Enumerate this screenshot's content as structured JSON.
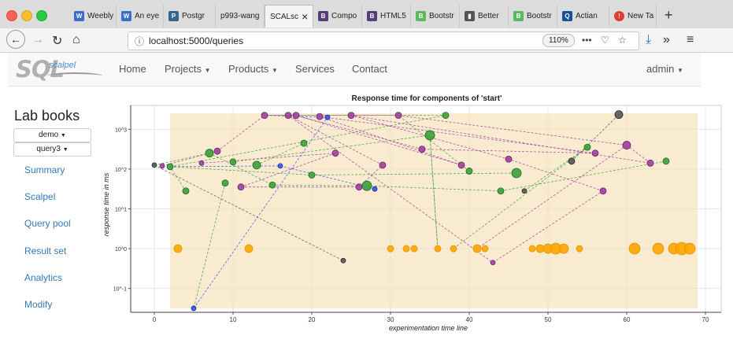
{
  "browser": {
    "tabs": [
      {
        "label": "Weebly",
        "icon": "weebly-icon",
        "color": "#3a6bd1"
      },
      {
        "label": "An eye",
        "icon": "weebly-icon",
        "color": "#3a6bd1"
      },
      {
        "label": "Postgr",
        "icon": "postgres-icon",
        "color": "#336791"
      },
      {
        "label": "p993-wang",
        "icon": "document-icon",
        "color": "#888888"
      },
      {
        "label": "SCALsc",
        "icon": "",
        "color": ""
      },
      {
        "label": "Compo",
        "icon": "bootstrap-icon",
        "color": "#563d7c"
      },
      {
        "label": "HTML5",
        "icon": "bootstrap-icon",
        "color": "#563d7c"
      },
      {
        "label": "Bootstr",
        "icon": "bootstrap-expo-icon",
        "color": "#5cb85c"
      },
      {
        "label": "Better",
        "icon": "book-icon",
        "color": "#555555"
      },
      {
        "label": "Bootstr",
        "icon": "bootstrap-expo-icon",
        "color": "#5cb85c"
      },
      {
        "label": "Actian",
        "icon": "actian-icon",
        "color": "#1b4f9c"
      },
      {
        "label": "New Ta",
        "icon": "new-tab-icon",
        "color": "#e23b2e"
      }
    ],
    "url": "localhost:5000/queries",
    "zoom": "110%"
  },
  "app": {
    "logo_main": "SQL",
    "logo_sub": "scalpel",
    "nav": [
      "Home",
      "Projects",
      "Products",
      "Services",
      "Contact"
    ],
    "user": "admin"
  },
  "sidebar": {
    "title": "Lab books",
    "dropdown1": "demo",
    "dropdown2": "query3",
    "links": [
      "Summary",
      "Scalpel",
      "Query pool",
      "Result set",
      "Analytics",
      "Modify"
    ]
  },
  "chart_data": {
    "type": "scatter",
    "title": "Response time for components of 'start'",
    "xlabel": "experimentation time line",
    "ylabel": "response time in ms",
    "xlim": [
      -3,
      72
    ],
    "ylim_log10": [
      -1.6,
      3.6
    ],
    "xticks": [
      0,
      10,
      20,
      30,
      40,
      50,
      60,
      70
    ],
    "yticks": [
      {
        "v": -1,
        "label": "10^-1"
      },
      {
        "v": 0,
        "label": "10^0"
      },
      {
        "v": 1,
        "label": "10^1"
      },
      {
        "v": 2,
        "label": "10^2"
      },
      {
        "v": 3,
        "label": "10^3"
      }
    ],
    "band": {
      "x": [
        2,
        69
      ],
      "y_log10": [
        -1.5,
        3.4
      ],
      "color": "#f5deb0"
    },
    "series": [
      {
        "color": "#ffa500",
        "edge": "#e69500",
        "points": [
          [
            3,
            0,
            5
          ],
          [
            12,
            0,
            5
          ],
          [
            30,
            0,
            4
          ],
          [
            32,
            0,
            4
          ],
          [
            33,
            0,
            4
          ],
          [
            36,
            0,
            4
          ],
          [
            38,
            0,
            4
          ],
          [
            41,
            0,
            5
          ],
          [
            42,
            0,
            4
          ],
          [
            48,
            0,
            4
          ],
          [
            49,
            0,
            5
          ],
          [
            50,
            0,
            6
          ],
          [
            51,
            0,
            7
          ],
          [
            52,
            0,
            6
          ],
          [
            54,
            0,
            4
          ],
          [
            61,
            0,
            7
          ],
          [
            64,
            0,
            7
          ],
          [
            66,
            0,
            7
          ],
          [
            67,
            0,
            8
          ],
          [
            68,
            0,
            7
          ]
        ]
      },
      {
        "color": "#3ba13b",
        "edge": "#1d6b1d",
        "points": [
          [
            2,
            2.06,
            4
          ],
          [
            4,
            1.45,
            4
          ],
          [
            7,
            2.4,
            5
          ],
          [
            9,
            1.65,
            4
          ],
          [
            10,
            2.18,
            4
          ],
          [
            13,
            2.1,
            5
          ],
          [
            15,
            1.6,
            4
          ],
          [
            19,
            2.65,
            4
          ],
          [
            20,
            1.85,
            4
          ],
          [
            27,
            1.58,
            6
          ],
          [
            35,
            2.85,
            6
          ],
          [
            37,
            3.35,
            4
          ],
          [
            40,
            1.95,
            4
          ],
          [
            44,
            1.45,
            4
          ],
          [
            46,
            1.9,
            6
          ],
          [
            55,
            2.55,
            4
          ],
          [
            65,
            2.2,
            4
          ]
        ]
      },
      {
        "color": "#a040a0",
        "edge": "#6a1f6a",
        "points": [
          [
            1,
            2.08,
            3
          ],
          [
            6,
            2.15,
            3
          ],
          [
            8,
            2.45,
            4
          ],
          [
            11,
            1.55,
            4
          ],
          [
            14,
            3.35,
            4
          ],
          [
            17,
            3.35,
            4
          ],
          [
            18,
            3.35,
            4
          ],
          [
            21,
            3.32,
            4
          ],
          [
            23,
            2.4,
            4
          ],
          [
            25,
            3.35,
            4
          ],
          [
            26,
            1.55,
            4
          ],
          [
            29,
            2.1,
            4
          ],
          [
            31,
            3.35,
            4
          ],
          [
            34,
            2.5,
            4
          ],
          [
            39,
            2.1,
            4
          ],
          [
            43,
            -0.35,
            3
          ],
          [
            45,
            2.25,
            4
          ],
          [
            56,
            2.4,
            4
          ],
          [
            57,
            1.45,
            4
          ],
          [
            60,
            2.6,
            5
          ],
          [
            63,
            2.15,
            4
          ]
        ]
      },
      {
        "color": "#3355ee",
        "edge": "#1a2a99",
        "points": [
          [
            5,
            -1.5,
            3
          ],
          [
            16,
            2.08,
            3
          ],
          [
            22,
            3.3,
            3
          ],
          [
            28,
            1.5,
            3
          ]
        ]
      },
      {
        "color": "#555555",
        "edge": "#222222",
        "points": [
          [
            0,
            2.1,
            3
          ],
          [
            24,
            -0.3,
            3
          ],
          [
            47,
            1.45,
            3
          ],
          [
            53,
            2.2,
            4
          ],
          [
            59,
            3.37,
            5
          ]
        ]
      }
    ],
    "green_links": [
      [
        0,
        2.1,
        7,
        2.4
      ],
      [
        2,
        2.06,
        37,
        3.35
      ],
      [
        2,
        2.06,
        20,
        1.85
      ],
      [
        4,
        1.45,
        2,
        2.06
      ],
      [
        7,
        2.4,
        15,
        1.6
      ],
      [
        9,
        1.65,
        5,
        -1.5
      ],
      [
        10,
        2.18,
        35,
        2.85
      ],
      [
        13,
        2.1,
        19,
        2.65
      ],
      [
        15,
        1.6,
        27,
        1.58
      ],
      [
        20,
        1.85,
        46,
        1.9
      ],
      [
        27,
        1.58,
        44,
        1.45
      ],
      [
        35,
        2.85,
        36,
        0
      ],
      [
        37,
        3.35,
        14,
        3.35
      ],
      [
        40,
        1.95,
        31,
        3.35
      ],
      [
        44,
        1.45,
        65,
        2.2
      ],
      [
        47,
        1.45,
        55,
        2.55
      ],
      [
        55,
        2.55,
        38,
        0
      ],
      [
        36,
        0,
        35,
        2.85
      ]
    ],
    "purple_links": [
      [
        1,
        2.08,
        8,
        2.45
      ],
      [
        6,
        2.15,
        23,
        2.4
      ],
      [
        8,
        2.45,
        14,
        3.35
      ],
      [
        11,
        1.55,
        26,
        1.55
      ],
      [
        14,
        3.35,
        31,
        3.35
      ],
      [
        17,
        3.35,
        43,
        -0.35
      ],
      [
        18,
        3.35,
        39,
        2.1
      ],
      [
        21,
        3.32,
        56,
        2.4
      ],
      [
        23,
        2.4,
        11,
        1.55
      ],
      [
        25,
        3.35,
        63,
        2.15
      ],
      [
        26,
        1.55,
        29,
        2.1
      ],
      [
        29,
        2.1,
        17,
        3.35
      ],
      [
        31,
        3.35,
        60,
        2.6
      ],
      [
        34,
        2.5,
        18,
        3.35
      ],
      [
        39,
        2.1,
        21,
        3.32
      ],
      [
        43,
        -0.35,
        57,
        1.45
      ],
      [
        45,
        2.25,
        25,
        3.35
      ],
      [
        56,
        2.4,
        34,
        2.5
      ],
      [
        57,
        1.45,
        45,
        2.25
      ],
      [
        60,
        2.6,
        41,
        0
      ],
      [
        63,
        2.15,
        60,
        2.6
      ]
    ],
    "blue_links": [
      [
        2,
        2.06,
        16,
        2.08
      ],
      [
        16,
        2.08,
        28,
        1.5
      ],
      [
        5,
        -1.5,
        22,
        3.3
      ],
      [
        22,
        3.3,
        14,
        3.35
      ]
    ],
    "dark_links": [
      [
        0,
        2.1,
        24,
        -0.3
      ],
      [
        53,
        2.2,
        59,
        3.37
      ]
    ]
  }
}
